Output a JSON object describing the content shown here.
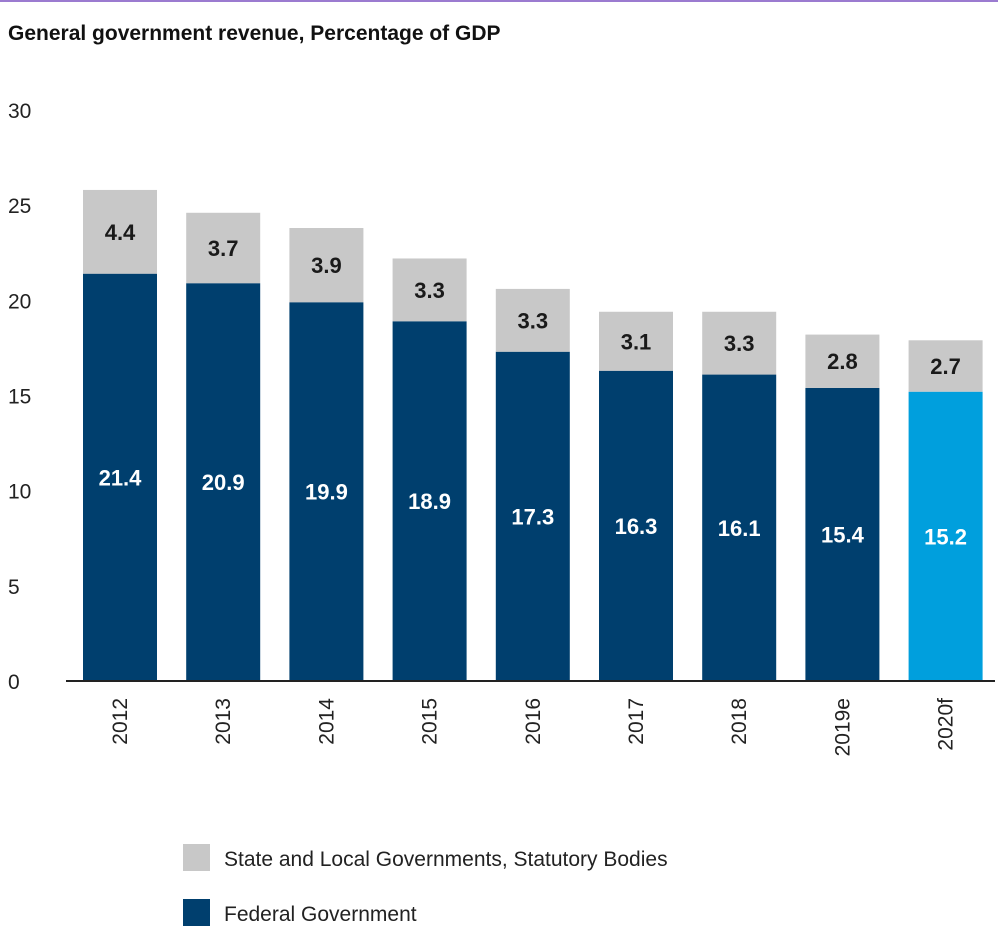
{
  "chart_data": {
    "type": "bar",
    "stacked": true,
    "title": "General government revenue, Percentage of GDP",
    "categories": [
      "2012",
      "2013",
      "2014",
      "2015",
      "2016",
      "2017",
      "2018",
      "2019e",
      "2020f"
    ],
    "series": [
      {
        "name": "Federal Government",
        "values": [
          21.4,
          20.9,
          19.9,
          18.9,
          17.3,
          16.3,
          16.1,
          15.4,
          15.2
        ],
        "color": "#003f6e",
        "highlight_color": "#009fdd",
        "highlight_index": 8
      },
      {
        "name": "State and Local Governments, Statutory Bodies",
        "values": [
          4.4,
          3.7,
          3.9,
          3.3,
          3.3,
          3.1,
          3.3,
          2.8,
          2.7
        ],
        "color": "#c8c8c8"
      }
    ],
    "yticks": [
      "0",
      "5",
      "10",
      "15",
      "20",
      "25",
      "30"
    ],
    "ylim": [
      0,
      30
    ],
    "grid": false,
    "legend_position": "bottom-center",
    "legend": [
      {
        "label": "State and Local Governments, Statutory Bodies",
        "color": "#c8c8c8"
      },
      {
        "label": "Federal Government",
        "color": "#003f6e"
      }
    ]
  }
}
